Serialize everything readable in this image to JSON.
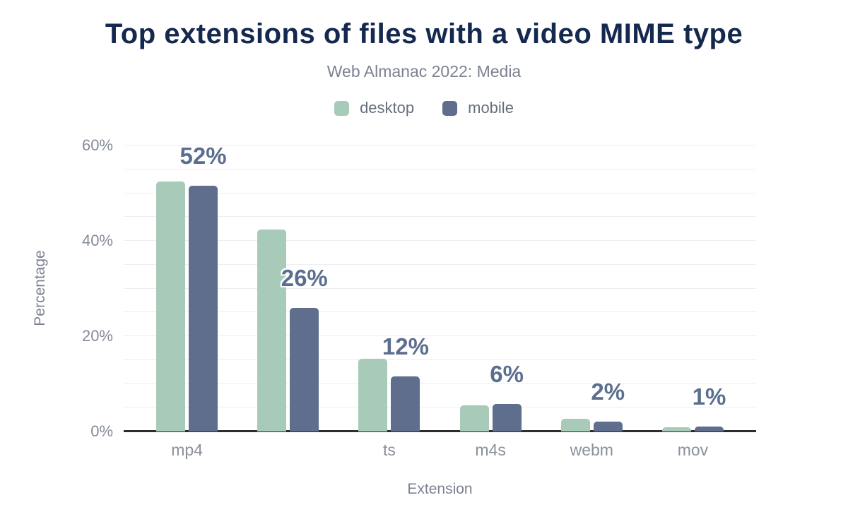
{
  "header": {
    "title": "Top extensions of files with a video MIME type",
    "subtitle": "Web Almanac 2022: Media"
  },
  "legend": [
    {
      "name": "desktop",
      "color": "#a8cab9"
    },
    {
      "name": "mobile",
      "color": "#5f6e8c"
    }
  ],
  "colors": {
    "title": "#15294f",
    "bar_label": "#5a6e8e",
    "axis_text": "#868c98",
    "gridline": "#eeeef2",
    "axis_line": "#2d2d2d"
  },
  "chart_data": {
    "type": "bar",
    "title": "Top extensions of files with a video MIME type",
    "subtitle": "Web Almanac 2022: Media",
    "categories": [
      "mp4",
      "",
      "ts",
      "m4s",
      "webm",
      "mov"
    ],
    "series": [
      {
        "name": "desktop",
        "color": "#a8cab9",
        "values": [
          52.5,
          42.4,
          15.2,
          5.5,
          2.6,
          0.9
        ]
      },
      {
        "name": "mobile",
        "color": "#5f6e8c",
        "values": [
          51.6,
          26.0,
          11.6,
          5.8,
          2.1,
          1.0
        ]
      }
    ],
    "bar_labels": [
      "52%",
      "26%",
      "12%",
      "6%",
      "2%",
      "1%"
    ],
    "xlabel": "Extension",
    "ylabel": "Percentage",
    "ylim": [
      0,
      60
    ],
    "y_ticks": [
      "0%",
      "20%",
      "40%",
      "60%"
    ],
    "grid_step": 5,
    "grid": "on",
    "legend_position": "top"
  }
}
